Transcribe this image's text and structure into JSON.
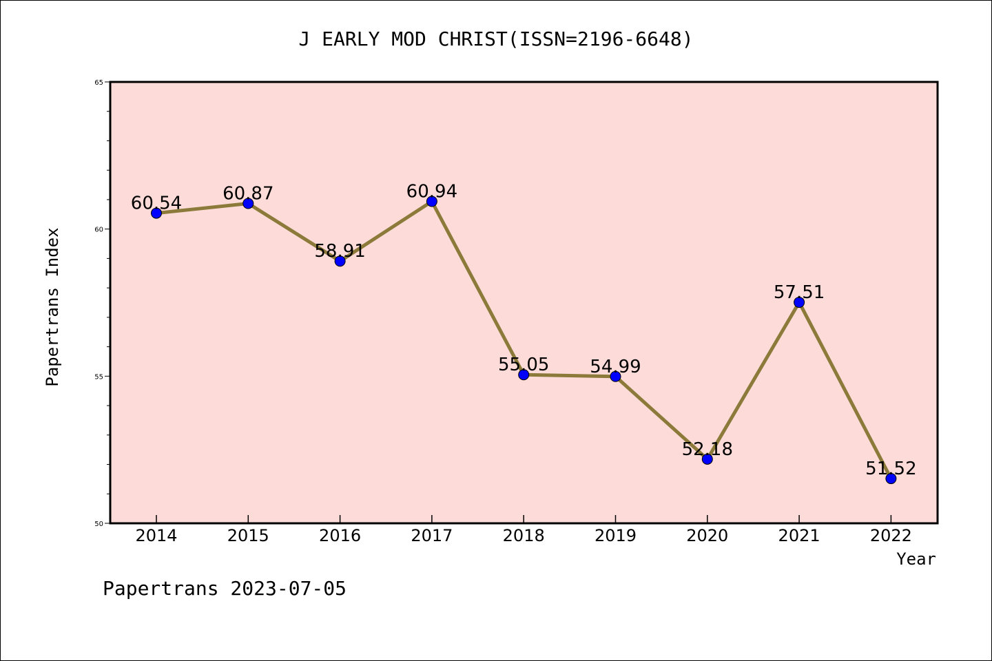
{
  "chart_data": {
    "type": "line",
    "title": "J EARLY MOD CHRIST(ISSN=2196-6648)",
    "xlabel": "Year",
    "ylabel": "Papertrans Index",
    "categories": [
      "2014",
      "2015",
      "2016",
      "2017",
      "2018",
      "2019",
      "2020",
      "2021",
      "2022"
    ],
    "series": [
      {
        "values": [
          60.54,
          60.87,
          58.91,
          60.94,
          55.05,
          54.99,
          52.18,
          57.51,
          51.52
        ],
        "data_labels": [
          "60.54",
          "60.87",
          "58.91",
          "60.94",
          "55.05",
          "54.99",
          "52.18",
          "57.51",
          "51.52"
        ]
      }
    ],
    "ylim": [
      50,
      65
    ],
    "yticks": [
      "50",
      "55",
      "60",
      "65"
    ],
    "grid": false,
    "legend": "none",
    "colors": {
      "plot_background": "#fddbd8",
      "line": "#8b7a3a",
      "marker": "#0000ff"
    }
  },
  "footer": {
    "text": "Papertrans 2023-07-05"
  }
}
